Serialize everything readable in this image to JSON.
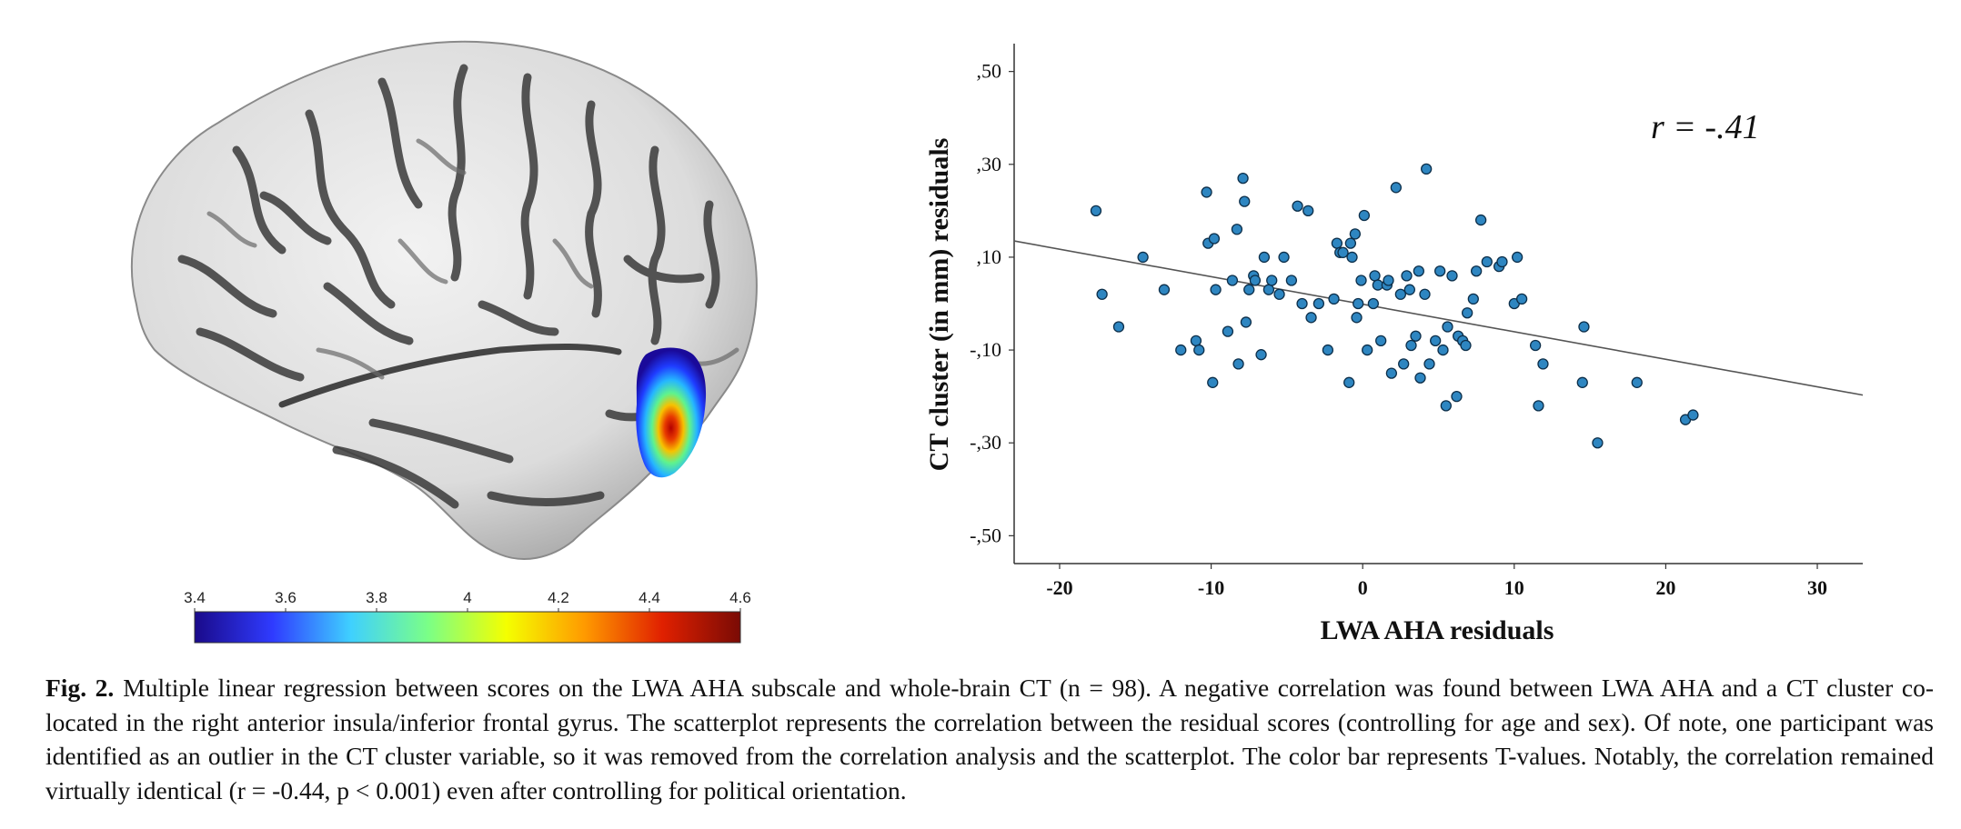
{
  "figure": {
    "caption_label": "Fig. 2.",
    "caption_text": "Multiple linear regression between scores on the LWA AHA subscale and whole-brain CT (n = 98). A negative correlation was found between LWA AHA and a CT cluster co-located in the right anterior insula/inferior frontal gyrus. The scatterplot represents the correlation between the residual scores (controlling for age and sex). Of note, one participant was identified as an outlier in the CT cluster variable, so it was removed from the correlation analysis and the scatterplot. The color bar represents T-values. Notably, the correlation remained virtually identical (r = -0.44, p < 0.001) even after controlling for political orientation."
  },
  "colorbar": {
    "ticks": [
      "3.4",
      "3.6",
      "3.8",
      "4",
      "4.2",
      "4.4",
      "4.6"
    ],
    "colors": [
      "#1a0a8a",
      "#2f3bff",
      "#3fd0ff",
      "#7bff86",
      "#f4ff00",
      "#ff9a00",
      "#e02000",
      "#7a0b05"
    ]
  },
  "chart_data": {
    "type": "scatter",
    "title": "",
    "xlabel": "LWA AHA residuals",
    "ylabel": "CT cluster (in mm) residuals",
    "annotation": "r = -.41",
    "xlim": [
      -23,
      33
    ],
    "ylim": [
      -0.56,
      0.56
    ],
    "xticks": [
      -20,
      -10,
      0,
      10,
      20,
      30
    ],
    "xtick_labels": [
      "-20",
      "-10",
      "0",
      "10",
      "20",
      "30"
    ],
    "yticks": [
      0.5,
      0.3,
      0.1,
      -0.1,
      -0.3,
      -0.5
    ],
    "ytick_labels": [
      ",50",
      ",30",
      ",10",
      "-,10",
      "-,30",
      "-,50"
    ],
    "grid": false,
    "point_color": "#2e86c1",
    "fit_line": {
      "x": [
        -23,
        33
      ],
      "y": [
        0.135,
        -0.197
      ]
    },
    "points": [
      [
        -17.6,
        0.2
      ],
      [
        -17.2,
        0.02
      ],
      [
        -16.1,
        -0.05
      ],
      [
        -14.5,
        0.1
      ],
      [
        -13.1,
        0.03
      ],
      [
        -12.0,
        -0.1
      ],
      [
        -11.0,
        -0.08
      ],
      [
        -10.8,
        -0.1
      ],
      [
        -10.3,
        0.24
      ],
      [
        -10.2,
        0.13
      ],
      [
        -9.8,
        0.14
      ],
      [
        -9.9,
        -0.17
      ],
      [
        -9.7,
        0.03
      ],
      [
        -8.9,
        -0.06
      ],
      [
        -8.6,
        0.05
      ],
      [
        -8.3,
        0.16
      ],
      [
        -8.2,
        -0.13
      ],
      [
        -7.9,
        0.27
      ],
      [
        -7.8,
        0.22
      ],
      [
        -7.7,
        -0.04
      ],
      [
        -7.5,
        0.03
      ],
      [
        -7.2,
        0.06
      ],
      [
        -7.1,
        0.05
      ],
      [
        -6.7,
        -0.11
      ],
      [
        -6.5,
        0.1
      ],
      [
        -6.2,
        0.03
      ],
      [
        -6.0,
        0.05
      ],
      [
        -5.5,
        0.02
      ],
      [
        -5.2,
        0.1
      ],
      [
        -4.7,
        0.05
      ],
      [
        -4.3,
        0.21
      ],
      [
        -4.0,
        0.0
      ],
      [
        -3.6,
        0.2
      ],
      [
        -3.4,
        -0.03
      ],
      [
        -2.9,
        0.0
      ],
      [
        -2.3,
        -0.1
      ],
      [
        -1.9,
        0.01
      ],
      [
        -1.7,
        0.13
      ],
      [
        -1.5,
        0.11
      ],
      [
        -1.3,
        0.11
      ],
      [
        -0.9,
        -0.17
      ],
      [
        -0.8,
        0.13
      ],
      [
        -0.7,
        0.1
      ],
      [
        -0.5,
        0.15
      ],
      [
        -0.4,
        -0.03
      ],
      [
        -0.3,
        0.0
      ],
      [
        -0.1,
        0.05
      ],
      [
        0.1,
        0.19
      ],
      [
        0.3,
        -0.1
      ],
      [
        0.7,
        0.0
      ],
      [
        0.8,
        0.06
      ],
      [
        1.0,
        0.04
      ],
      [
        1.2,
        -0.08
      ],
      [
        1.6,
        0.04
      ],
      [
        1.7,
        0.05
      ],
      [
        1.9,
        -0.15
      ],
      [
        2.2,
        0.25
      ],
      [
        2.5,
        0.02
      ],
      [
        2.7,
        -0.13
      ],
      [
        2.9,
        0.06
      ],
      [
        3.1,
        0.03
      ],
      [
        3.2,
        -0.09
      ],
      [
        3.5,
        -0.07
      ],
      [
        3.7,
        0.07
      ],
      [
        3.8,
        -0.16
      ],
      [
        4.1,
        0.02
      ],
      [
        4.2,
        0.29
      ],
      [
        4.4,
        -0.13
      ],
      [
        4.8,
        -0.08
      ],
      [
        5.1,
        0.07
      ],
      [
        5.3,
        -0.1
      ],
      [
        5.5,
        -0.22
      ],
      [
        5.6,
        -0.05
      ],
      [
        5.9,
        0.06
      ],
      [
        6.2,
        -0.2
      ],
      [
        6.3,
        -0.07
      ],
      [
        6.6,
        -0.08
      ],
      [
        6.8,
        -0.09
      ],
      [
        6.9,
        -0.02
      ],
      [
        7.3,
        0.01
      ],
      [
        7.5,
        0.07
      ],
      [
        7.8,
        0.18
      ],
      [
        8.2,
        0.09
      ],
      [
        9.0,
        0.08
      ],
      [
        9.2,
        0.09
      ],
      [
        10.0,
        0.0
      ],
      [
        10.2,
        0.1
      ],
      [
        10.5,
        0.01
      ],
      [
        11.4,
        -0.09
      ],
      [
        11.6,
        -0.22
      ],
      [
        11.9,
        -0.13
      ],
      [
        14.5,
        -0.17
      ],
      [
        14.6,
        -0.05
      ],
      [
        15.5,
        -0.3
      ],
      [
        18.1,
        -0.17
      ],
      [
        21.3,
        -0.25
      ],
      [
        21.8,
        -0.24
      ]
    ]
  }
}
